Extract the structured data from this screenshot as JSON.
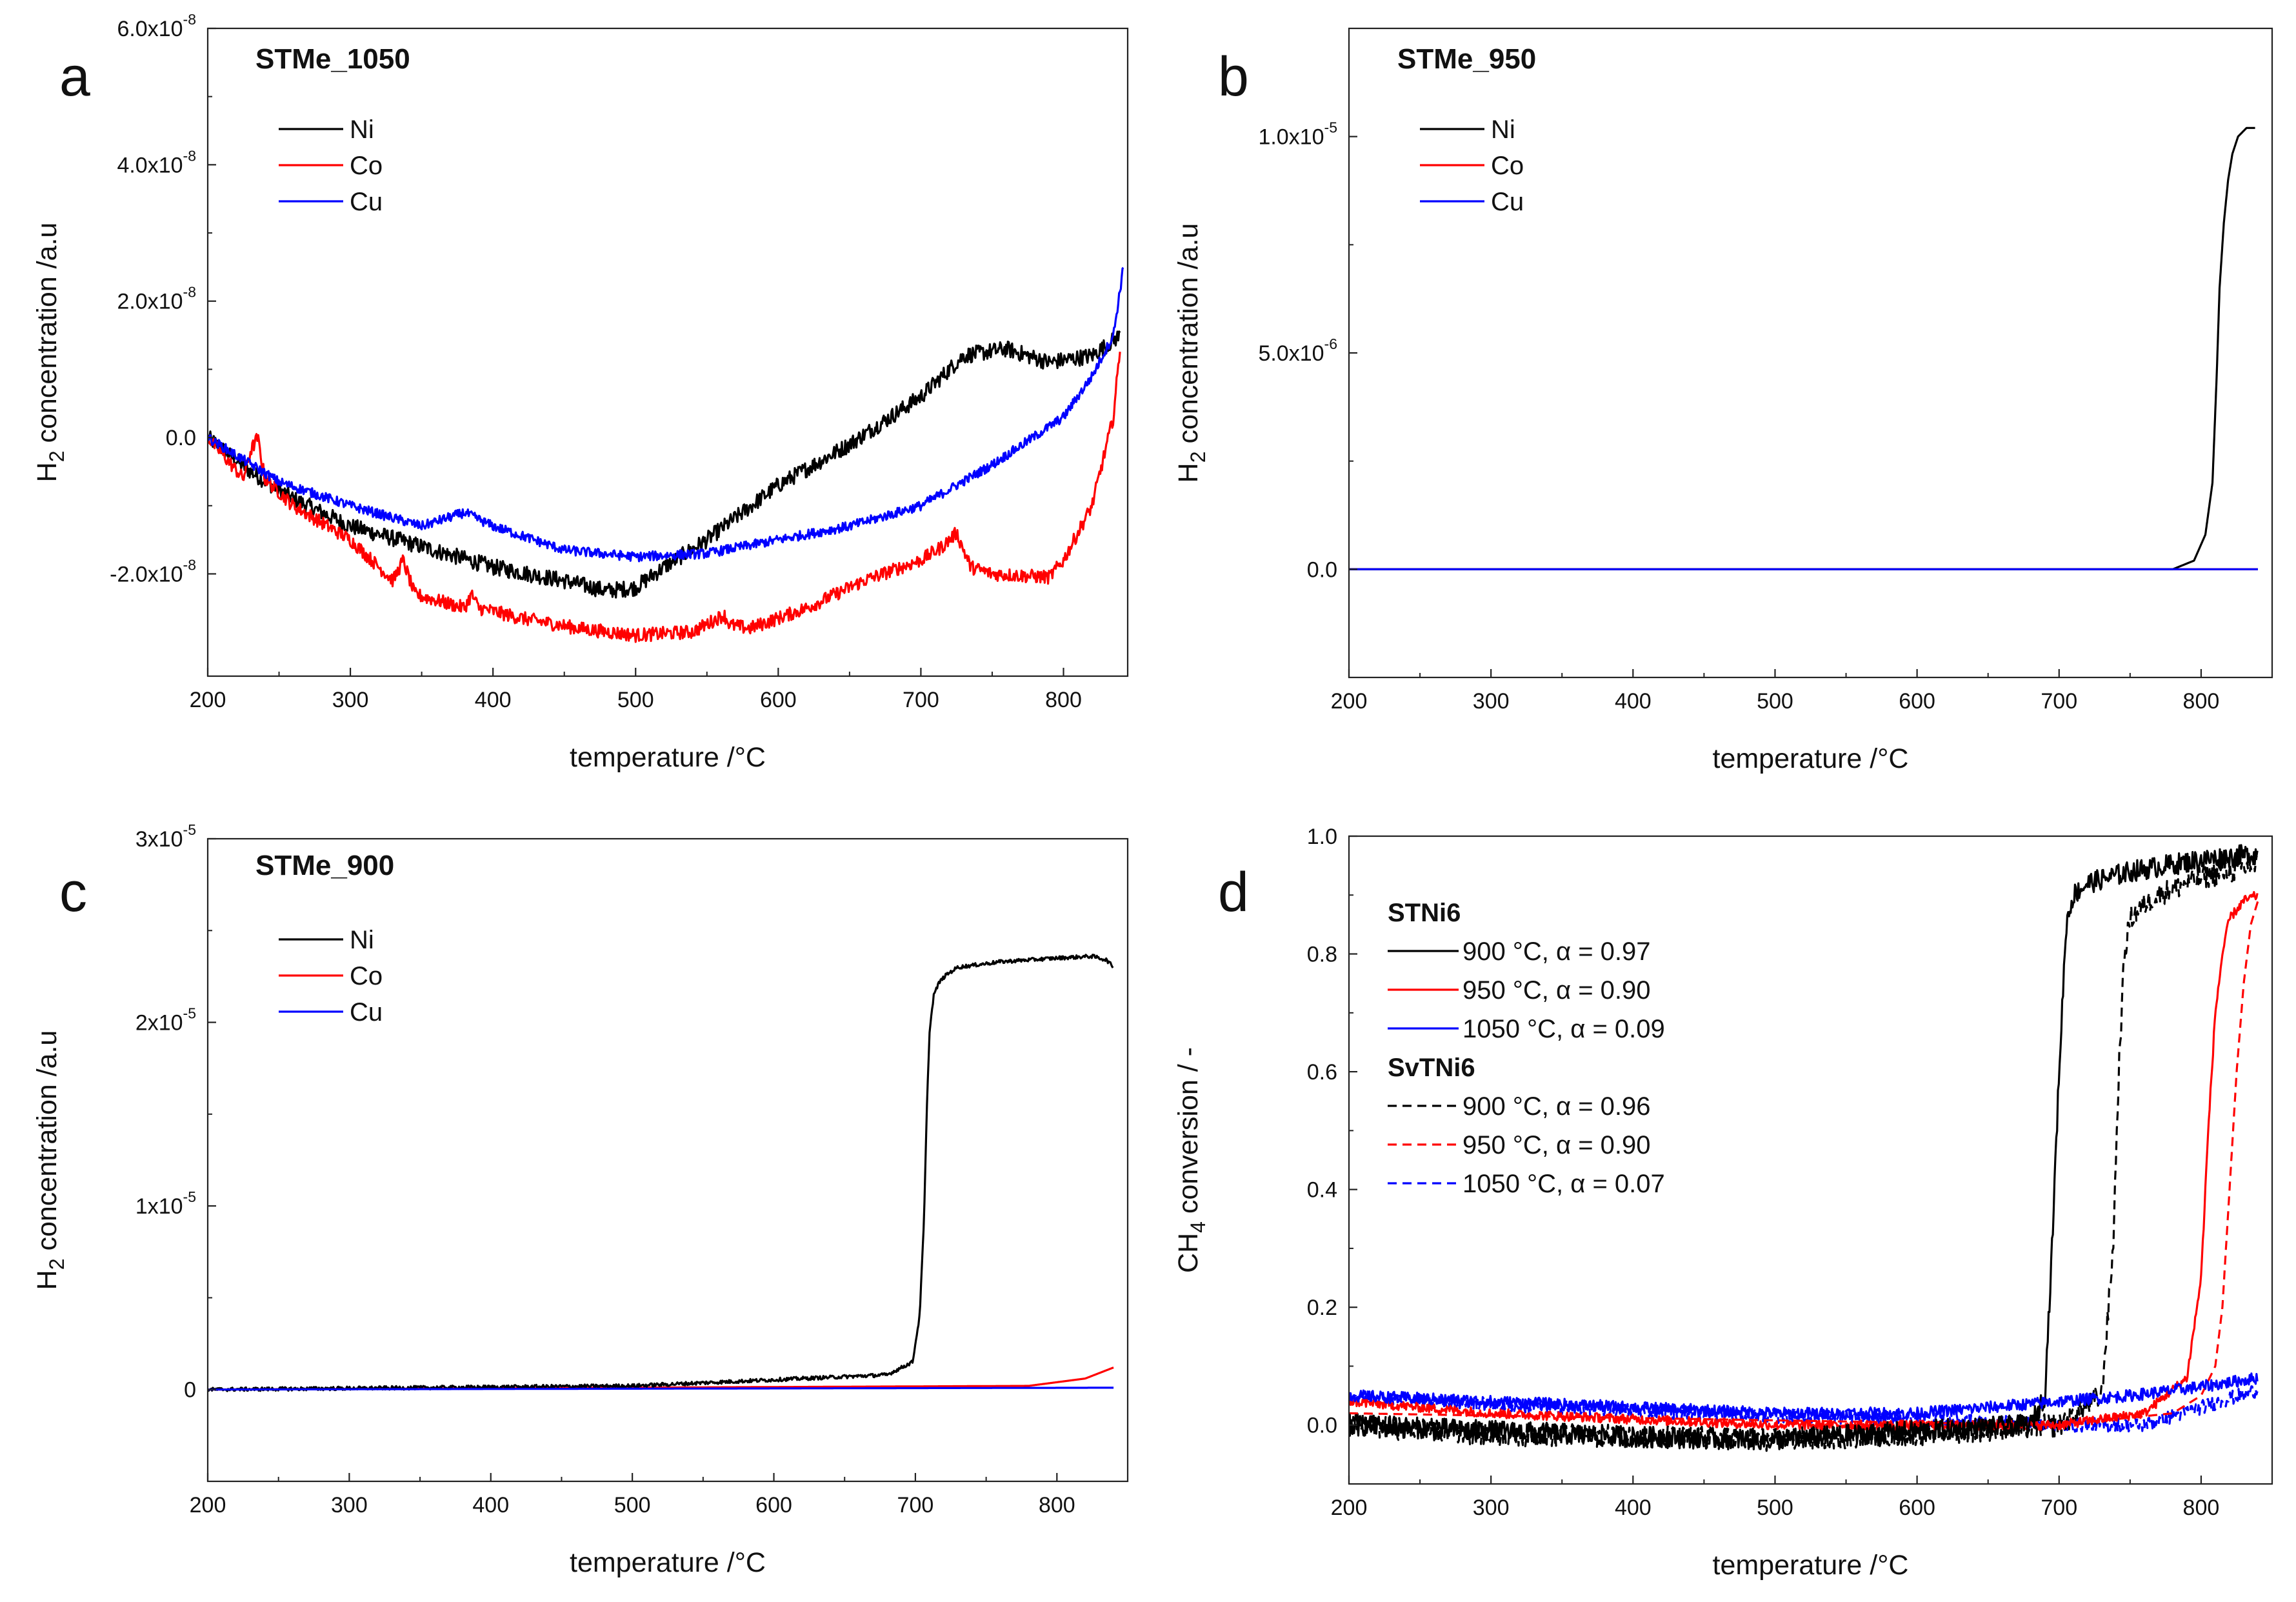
{
  "chart_data": [
    {
      "letter": "a",
      "title": "STMe_1050",
      "type": "line",
      "xlabel": "temperature /°C",
      "ylabel": "H₂ concentration /a.u",
      "xlim": [
        200,
        845
      ],
      "ylim": [
        -3.5e-08,
        6e-08
      ],
      "xticks": [
        "200",
        "300",
        "400",
        "500",
        "600",
        "700",
        "800"
      ],
      "yticks": [
        {
          "v": -2e-08,
          "m": "-2.0x10",
          "e": "-8"
        },
        {
          "v": 0.0,
          "m": "0.0",
          "e": ""
        },
        {
          "v": 2e-08,
          "m": "2.0x10",
          "e": "-8"
        },
        {
          "v": 4e-08,
          "m": "4.0x10",
          "e": "-8"
        },
        {
          "v": 6e-08,
          "m": "6.0x10",
          "e": "-8"
        }
      ],
      "legend": [
        {
          "label": "Ni",
          "color": "#000000",
          "dash": false
        },
        {
          "label": "Co",
          "color": "#ff0000",
          "dash": false
        },
        {
          "label": "Cu",
          "color": "#0000ff",
          "dash": false
        }
      ],
      "series": [
        {
          "name": "Ni",
          "color": "#000000",
          "noise": 1.2e-09,
          "x": [
            200,
            230,
            260,
            300,
            350,
            400,
            450,
            480,
            500,
            520,
            550,
            600,
            650,
            700,
            730,
            760,
            790,
            820,
            840
          ],
          "y": [
            0,
            -5e-09,
            -9e-09,
            -1.3e-08,
            -1.6e-08,
            -1.9e-08,
            -2.1e-08,
            -2.25e-08,
            -2.2e-08,
            -1.9e-08,
            -1.5e-08,
            -7e-09,
            -1e-09,
            6e-09,
            1.2e-08,
            1.3e-08,
            1.1e-08,
            1.2e-08,
            1.5e-08
          ]
        },
        {
          "name": "Co",
          "color": "#ff0000",
          "noise": 1e-09,
          "x": [
            200,
            225,
            230,
            235,
            240,
            260,
            300,
            330,
            337,
            345,
            380,
            385,
            390,
            420,
            460,
            500,
            540,
            562,
            566,
            580,
            620,
            660,
            700,
            715,
            725,
            735,
            750,
            790,
            800,
            820,
            835,
            840
          ],
          "y": [
            0,
            -6e-09,
            -2e-09,
            0,
            -6e-09,
            -1e-08,
            -1.5e-08,
            -2.1e-08,
            -1.8e-08,
            -2.3e-08,
            -2.5e-08,
            -2.3e-08,
            -2.5e-08,
            -2.65e-08,
            -2.8e-08,
            -2.9e-08,
            -2.85e-08,
            -2.6e-08,
            -2.75e-08,
            -2.8e-08,
            -2.5e-08,
            -2.1e-08,
            -1.8e-08,
            -1.6e-08,
            -1.4e-08,
            -1.9e-08,
            -2e-08,
            -2.05e-08,
            -1.8e-08,
            -1e-08,
            3e-09,
            1.4e-08
          ]
        },
        {
          "name": "Cu",
          "color": "#0000ff",
          "noise": 7e-10,
          "x": [
            200,
            250,
            300,
            350,
            380,
            400,
            450,
            500,
            550,
            600,
            650,
            700,
            750,
            800,
            820,
            835,
            842
          ],
          "y": [
            0,
            -6.5e-09,
            -1e-08,
            -1.3e-08,
            -1.1e-08,
            -1.3e-08,
            -1.65e-08,
            -1.75e-08,
            -1.7e-08,
            -1.5e-08,
            -1.3e-08,
            -1e-08,
            -4e-09,
            3e-09,
            9e-09,
            1.5e-08,
            2.5e-08
          ]
        }
      ]
    },
    {
      "letter": "b",
      "title": "STMe_950",
      "type": "line",
      "xlabel": "temperature /°C",
      "ylabel": "H₂ concentration /a.u",
      "xlim": [
        200,
        850
      ],
      "ylim": [
        -2.5e-06,
        1.25e-05
      ],
      "xticks": [
        "200",
        "300",
        "400",
        "500",
        "600",
        "700",
        "800"
      ],
      "yticks": [
        {
          "v": 0.0,
          "m": "0.0",
          "e": ""
        },
        {
          "v": 5e-06,
          "m": "5.0x10",
          "e": "-6"
        },
        {
          "v": 1e-05,
          "m": "1.0x10",
          "e": "-5"
        }
      ],
      "legend": [
        {
          "label": "Ni",
          "color": "#000000",
          "dash": false
        },
        {
          "label": "Co",
          "color": "#ff0000",
          "dash": false
        },
        {
          "label": "Cu",
          "color": "#0000ff",
          "dash": false
        }
      ],
      "series": [
        {
          "name": "Co",
          "color": "#ff0000",
          "noise": 0,
          "x": [
            200,
            840
          ],
          "y": [
            0,
            0
          ]
        },
        {
          "name": "Ni",
          "color": "#000000",
          "noise": 0,
          "x": [
            200,
            780,
            795,
            803,
            808,
            811,
            813,
            816,
            819,
            822,
            826,
            832,
            838
          ],
          "y": [
            0,
            0,
            2e-07,
            8e-07,
            2e-06,
            4.5e-06,
            6.5e-06,
            8e-06,
            9e-06,
            9.6e-06,
            1e-05,
            1.02e-05,
            1.02e-05
          ]
        },
        {
          "name": "Cu",
          "color": "#0000ff",
          "noise": 0,
          "x": [
            200,
            840
          ],
          "y": [
            0,
            0
          ]
        }
      ]
    },
    {
      "letter": "c",
      "title": "STMe_900",
      "type": "line",
      "xlabel": "temperature /°C",
      "ylabel": "H₂ concentration /a.u",
      "xlim": [
        200,
        850
      ],
      "ylim": [
        -5e-06,
        3e-05
      ],
      "xticks": [
        "200",
        "300",
        "400",
        "500",
        "600",
        "700",
        "800"
      ],
      "yticks": [
        {
          "v": 0,
          "m": "0",
          "e": ""
        },
        {
          "v": 1e-05,
          "m": "1x10",
          "e": "-5"
        },
        {
          "v": 2e-05,
          "m": "2x10",
          "e": "-5"
        },
        {
          "v": 3e-05,
          "m": "3x10",
          "e": "-5"
        }
      ],
      "legend": [
        {
          "label": "Ni",
          "color": "#000000",
          "dash": false
        },
        {
          "label": "Co",
          "color": "#ff0000",
          "dash": false
        },
        {
          "label": "Cu",
          "color": "#0000ff",
          "dash": false
        }
      ],
      "series": [
        {
          "name": "Co",
          "color": "#ff0000",
          "noise": 0,
          "x": [
            200,
            780,
            820,
            840
          ],
          "y": [
            0,
            2e-07,
            6e-07,
            1.2e-06
          ]
        },
        {
          "name": "Ni",
          "color": "#000000",
          "noise": 1e-07,
          "x": [
            200,
            500,
            680,
            698,
            703,
            706,
            708,
            710,
            713,
            717,
            722,
            730,
            760,
            800,
            825,
            835,
            840
          ],
          "y": [
            0,
            2e-07,
            8e-07,
            1.5e-06,
            4e-06,
            9e-06,
            1.5e-05,
            1.95e-05,
            2.15e-05,
            2.22e-05,
            2.26e-05,
            2.3e-05,
            2.33e-05,
            2.35e-05,
            2.36e-05,
            2.34e-05,
            2.3e-05
          ]
        },
        {
          "name": "Cu",
          "color": "#0000ff",
          "noise": 0,
          "x": [
            200,
            840
          ],
          "y": [
            0,
            1e-07
          ]
        }
      ]
    },
    {
      "letter": "d",
      "title": "",
      "type": "line",
      "xlabel": "temperature /°C",
      "ylabel": "CH₄ conversion / -",
      "xlim": [
        200,
        850
      ],
      "ylim": [
        -0.1,
        1.0
      ],
      "xticks": [
        "200",
        "300",
        "400",
        "500",
        "600",
        "700",
        "800"
      ],
      "yticks": [
        {
          "v": 0.0,
          "m": "0.0",
          "e": ""
        },
        {
          "v": 0.2,
          "m": "0.2",
          "e": ""
        },
        {
          "v": 0.4,
          "m": "0.4",
          "e": ""
        },
        {
          "v": 0.6,
          "m": "0.6",
          "e": ""
        },
        {
          "v": 0.8,
          "m": "0.8",
          "e": ""
        },
        {
          "v": 1.0,
          "m": "1.0",
          "e": ""
        }
      ],
      "legend_groups": [
        {
          "heading": "STNi6",
          "items": [
            {
              "label": "900 °C, α = 0.97",
              "color": "#000000",
              "dash": false
            },
            {
              "label": "950 °C, α = 0.90",
              "color": "#ff0000",
              "dash": false
            },
            {
              "label": "1050 °C, α = 0.09",
              "color": "#0000ff",
              "dash": false
            }
          ]
        },
        {
          "heading": "SvTNi6",
          "items": [
            {
              "label": "900 °C, α = 0.96",
              "color": "#000000",
              "dash": true
            },
            {
              "label": "950 °C, α = 0.90",
              "color": "#ff0000",
              "dash": true
            },
            {
              "label": "1050 °C, α = 0.07",
              "color": "#0000ff",
              "dash": true
            }
          ]
        }
      ],
      "series": [
        {
          "name": "SvTNi6 1050 °C",
          "color": "#0000ff",
          "dash": true,
          "noise": 0.012,
          "x": [
            200,
            300,
            400,
            500,
            600,
            700,
            760,
            800,
            840
          ],
          "y": [
            0.05,
            0.035,
            0.025,
            0.015,
            0.01,
            0.0,
            0.0,
            0.03,
            0.06
          ]
        },
        {
          "name": "SvTNi6 900 °C",
          "color": "#000000",
          "dash": true,
          "noise": 0.02,
          "x": [
            200,
            300,
            400,
            500,
            600,
            700,
            730,
            738,
            742,
            746,
            750,
            758,
            770,
            800,
            840
          ],
          "y": [
            0.0,
            -0.015,
            -0.02,
            -0.025,
            -0.015,
            0.0,
            0.05,
            0.3,
            0.6,
            0.8,
            0.86,
            0.88,
            0.9,
            0.93,
            0.95
          ]
        },
        {
          "name": "SvTNi6 950 °C",
          "color": "#ff0000",
          "dash": true,
          "noise": 0,
          "x": [
            200,
            700,
            780,
            800,
            810,
            815,
            820,
            825,
            830,
            835,
            840
          ],
          "y": [
            0.02,
            0.0,
            0.02,
            0.05,
            0.1,
            0.2,
            0.4,
            0.6,
            0.75,
            0.85,
            0.89
          ]
        },
        {
          "name": "STNi6 950 °C",
          "color": "#ff0000",
          "dash": false,
          "noise": 0.008,
          "x": [
            200,
            300,
            400,
            500,
            600,
            700,
            760,
            790,
            800,
            805,
            810,
            815,
            820,
            830,
            840
          ],
          "y": [
            0.04,
            0.02,
            0.01,
            0.0,
            0.0,
            0.0,
            0.02,
            0.08,
            0.25,
            0.5,
            0.7,
            0.8,
            0.86,
            0.89,
            0.9
          ]
        },
        {
          "name": "STNi6 900 °C",
          "color": "#000000",
          "dash": false,
          "noise": 0.018,
          "x": [
            200,
            300,
            400,
            500,
            600,
            680,
            690,
            695,
            700,
            705,
            710,
            720,
            750,
            800,
            840
          ],
          "y": [
            0.0,
            -0.01,
            -0.02,
            -0.025,
            -0.01,
            0.0,
            0.05,
            0.3,
            0.6,
            0.85,
            0.9,
            0.92,
            0.94,
            0.96,
            0.97
          ]
        },
        {
          "name": "STNi6 1050 °C",
          "color": "#0000ff",
          "dash": false,
          "noise": 0.01,
          "x": [
            200,
            300,
            400,
            500,
            600,
            700,
            750,
            800,
            840
          ],
          "y": [
            0.05,
            0.04,
            0.03,
            0.02,
            0.02,
            0.04,
            0.05,
            0.065,
            0.08
          ]
        }
      ]
    }
  ]
}
